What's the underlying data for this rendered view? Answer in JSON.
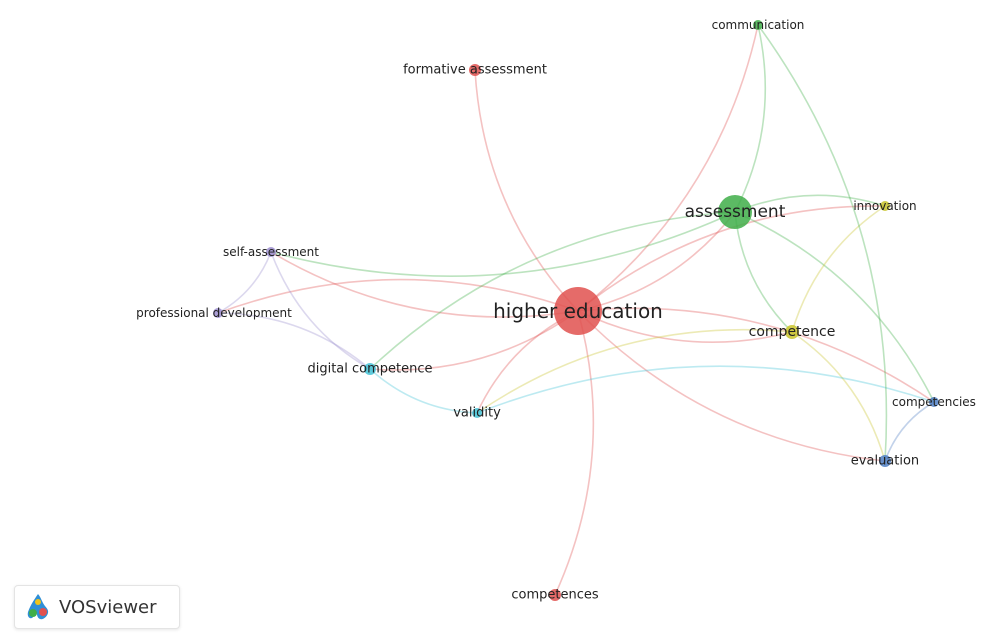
{
  "app": {
    "logo_text": "VOSviewer"
  },
  "colors": {
    "red": "#e0514f",
    "green": "#3fae49",
    "yellow": "#c9c42a",
    "purple": "#9c8ecf",
    "cyan": "#43c2d6",
    "blue": "#4f7fc4"
  },
  "nodes": [
    {
      "id": "higher-education",
      "label": "higher education",
      "cluster": "red"
    },
    {
      "id": "assessment",
      "label": "assessment",
      "cluster": "green"
    },
    {
      "id": "formative-assessment",
      "label": "formative assessment",
      "cluster": "red"
    },
    {
      "id": "communication",
      "label": "communication",
      "cluster": "green"
    },
    {
      "id": "innovation",
      "label": "innovation",
      "cluster": "yellow"
    },
    {
      "id": "competence",
      "label": "competence",
      "cluster": "yellow"
    },
    {
      "id": "self-assessment",
      "label": "self-assessment",
      "cluster": "purple"
    },
    {
      "id": "professional-development",
      "label": "professional development",
      "cluster": "purple"
    },
    {
      "id": "digital-competence",
      "label": "digital competence",
      "cluster": "cyan"
    },
    {
      "id": "validity",
      "label": "validity",
      "cluster": "cyan"
    },
    {
      "id": "competencies",
      "label": "competencies",
      "cluster": "blue"
    },
    {
      "id": "evaluation",
      "label": "evaluation",
      "cluster": "blue"
    },
    {
      "id": "competences",
      "label": "competences",
      "cluster": "red"
    }
  ],
  "links": [
    {
      "source": "higher-education",
      "target": "assessment"
    },
    {
      "source": "higher-education",
      "target": "formative-assessment"
    },
    {
      "source": "higher-education",
      "target": "communication"
    },
    {
      "source": "higher-education",
      "target": "innovation"
    },
    {
      "source": "higher-education",
      "target": "competence"
    },
    {
      "source": "higher-education",
      "target": "self-assessment"
    },
    {
      "source": "higher-education",
      "target": "professional-development"
    },
    {
      "source": "higher-education",
      "target": "digital-competence"
    },
    {
      "source": "higher-education",
      "target": "validity"
    },
    {
      "source": "higher-education",
      "target": "competencies"
    },
    {
      "source": "higher-education",
      "target": "evaluation"
    },
    {
      "source": "higher-education",
      "target": "competences"
    },
    {
      "source": "assessment",
      "target": "communication"
    },
    {
      "source": "assessment",
      "target": "innovation"
    },
    {
      "source": "assessment",
      "target": "competence"
    },
    {
      "source": "assessment",
      "target": "competencies"
    },
    {
      "source": "assessment",
      "target": "digital-competence"
    },
    {
      "source": "assessment",
      "target": "self-assessment"
    },
    {
      "source": "innovation",
      "target": "competence"
    },
    {
      "source": "competence",
      "target": "evaluation"
    },
    {
      "source": "competence",
      "target": "validity"
    },
    {
      "source": "self-assessment",
      "target": "professional-development"
    },
    {
      "source": "self-assessment",
      "target": "digital-competence"
    },
    {
      "source": "professional-development",
      "target": "digital-competence"
    },
    {
      "source": "digital-competence",
      "target": "validity"
    },
    {
      "source": "validity",
      "target": "competencies"
    },
    {
      "source": "competencies",
      "target": "evaluation"
    },
    {
      "source": "communication",
      "target": "evaluation"
    }
  ]
}
